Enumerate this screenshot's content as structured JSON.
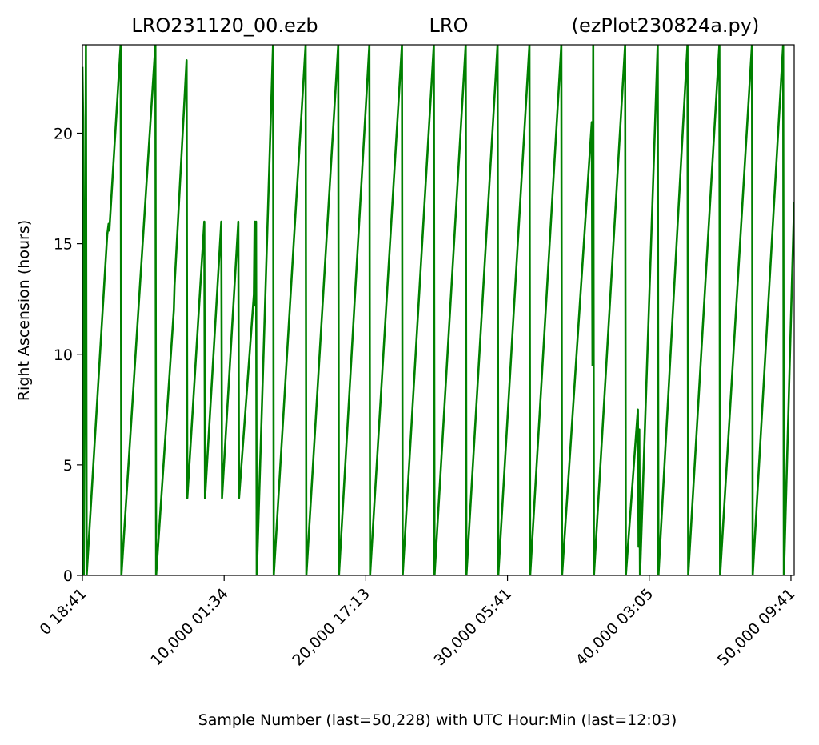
{
  "chart_data": {
    "type": "line",
    "title_left": "LRO231120_00.ezb",
    "title_center": "LRO",
    "title_right": "(ezPlot230824a.py)",
    "xlabel": "Sample Number (last=50,228) with UTC Hour:Min (last=12:03)",
    "ylabel": "Right Ascension (hours)",
    "xlim": [
      0,
      50228
    ],
    "ylim": [
      0,
      24
    ],
    "x_ticks": [
      {
        "value": 0,
        "label": "0  18:41"
      },
      {
        "value": 10000,
        "label": "10,000  01:34"
      },
      {
        "value": 20000,
        "label": "20,000  17:13"
      },
      {
        "value": 30000,
        "label": "30,000  05:41"
      },
      {
        "value": 40000,
        "label": "40,000  03:05"
      },
      {
        "value": 50000,
        "label": "50,000  09:41"
      }
    ],
    "y_ticks": [
      0,
      5,
      10,
      15,
      20
    ],
    "grid": false,
    "series": [
      {
        "color": "#008000",
        "points": [
          [
            0,
            23.0
          ],
          [
            50,
            20.7
          ],
          [
            100,
            0
          ],
          [
            250,
            24.0
          ],
          [
            300,
            0
          ],
          [
            1750,
            15.4
          ],
          [
            1850,
            15.9
          ],
          [
            1900,
            15.6
          ],
          [
            2700,
            24.0
          ],
          [
            2750,
            0
          ],
          [
            5150,
            24.0
          ],
          [
            5200,
            0
          ],
          [
            6450,
            12.0
          ],
          [
            6500,
            13.1
          ],
          [
            7350,
            23.3
          ],
          [
            7400,
            3.5
          ],
          [
            8600,
            16.0
          ],
          [
            8650,
            3.5
          ],
          [
            9800,
            16.0
          ],
          [
            9850,
            3.5
          ],
          [
            11000,
            16.0
          ],
          [
            11050,
            3.5
          ],
          [
            12100,
            12.7
          ],
          [
            12150,
            16.0
          ],
          [
            12200,
            12.2
          ],
          [
            12250,
            16.0
          ],
          [
            12300,
            0
          ],
          [
            13450,
            24.0
          ],
          [
            13500,
            0
          ],
          [
            15750,
            24.0
          ],
          [
            15800,
            0
          ],
          [
            18050,
            24.0
          ],
          [
            18100,
            0
          ],
          [
            20250,
            24.0
          ],
          [
            20300,
            0
          ],
          [
            22550,
            24.0
          ],
          [
            22600,
            0
          ],
          [
            24800,
            24.0
          ],
          [
            24850,
            0
          ],
          [
            27050,
            24.0
          ],
          [
            27100,
            0
          ],
          [
            29300,
            24.0
          ],
          [
            29350,
            0
          ],
          [
            31550,
            24.0
          ],
          [
            31600,
            0
          ],
          [
            33800,
            24.0
          ],
          [
            33850,
            0
          ],
          [
            35950,
            20.5
          ],
          [
            36000,
            9.5
          ],
          [
            36050,
            24.0
          ],
          [
            36100,
            0
          ],
          [
            38300,
            24.0
          ],
          [
            38350,
            0
          ],
          [
            39200,
            7.5
          ],
          [
            39250,
            1.3
          ],
          [
            39300,
            6.6
          ],
          [
            39350,
            0
          ],
          [
            40600,
            24.0
          ],
          [
            40650,
            0
          ],
          [
            42700,
            24.0
          ],
          [
            42750,
            0
          ],
          [
            44950,
            24.0
          ],
          [
            45000,
            0
          ],
          [
            47250,
            24.0
          ],
          [
            47300,
            0
          ],
          [
            49450,
            24.0
          ],
          [
            49500,
            0
          ],
          [
            50228,
            16.9
          ]
        ]
      }
    ]
  }
}
